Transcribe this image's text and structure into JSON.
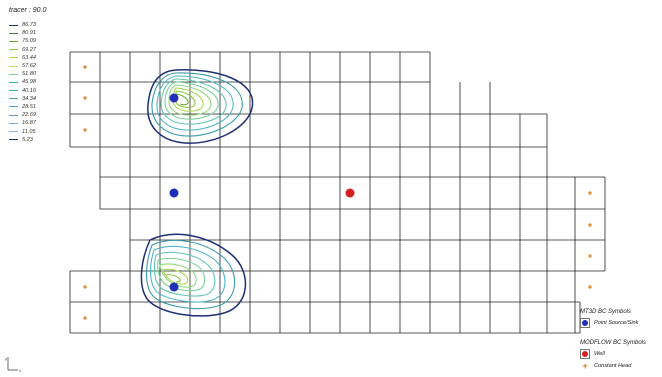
{
  "panel": {
    "title": "tracer : 90.0"
  },
  "legend": {
    "values": [
      "86.73",
      "80.91",
      "75.09",
      "69.27",
      "63.44",
      "57.62",
      "51.80",
      "45.98",
      "40.16",
      "34.34",
      "28.51",
      "22.69",
      "16.87",
      "11.05",
      "5.23"
    ],
    "colors": [
      "#1d2f73",
      "#3a7d47",
      "#6fa53b",
      "#93c93a",
      "#a8d93a",
      "#b6e04d",
      "#7fd48a",
      "#2fb38f",
      "#35b1a0",
      "#3aa9b5",
      "#4aa3c8",
      "#5a9fd6",
      "#6aa8e0",
      "#7ab6ea",
      "#1d2f73"
    ]
  },
  "mt3d": {
    "title": "MT3D BC Symbols",
    "items": [
      {
        "label": "Point Source/Sink",
        "icon": "blue-dot-icon",
        "color": "#1f2fb8"
      }
    ]
  },
  "modflow": {
    "title": "MODFLOW BC Symbols",
    "items": [
      {
        "label": "Well",
        "icon": "red-dot-icon",
        "color": "#d62020"
      },
      {
        "label": "Constant Head",
        "icon": "orange-plus-icon",
        "color": "#d97a17"
      }
    ]
  },
  "axis": {
    "x_label": "x",
    "y_label": "y"
  }
}
